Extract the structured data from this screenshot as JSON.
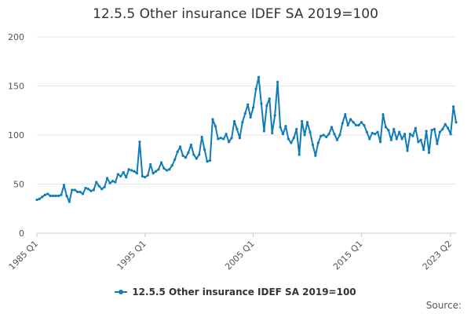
{
  "chart_data": {
    "type": "line",
    "title": "12.5.5 Other insurance IDEF SA 2019=100",
    "xlabel": "",
    "ylabel": "",
    "ylim": [
      0,
      200
    ],
    "yticks": [
      "0",
      "50",
      "100",
      "150",
      "200"
    ],
    "x_tick_labels": [
      "1985 Q1",
      "1995 Q1",
      "2005 Q1",
      "2015 Q1",
      "2023 Q2"
    ],
    "grid": true,
    "legend_position": "bottom",
    "series": [
      {
        "name": "12.5.5 Other insurance IDEF SA 2019=100",
        "color": "#0f7cb8",
        "start": "1985 Q1",
        "frequency": "quarterly",
        "values": [
          34,
          35,
          37,
          39,
          40,
          38,
          38,
          38,
          38,
          39,
          49,
          38,
          32,
          44,
          44,
          42,
          42,
          40,
          46,
          45,
          43,
          44,
          52,
          48,
          45,
          47,
          56,
          51,
          53,
          52,
          60,
          58,
          62,
          57,
          65,
          64,
          63,
          61,
          93,
          58,
          57,
          59,
          70,
          61,
          63,
          65,
          72,
          66,
          64,
          65,
          69,
          75,
          83,
          88,
          79,
          77,
          82,
          90,
          80,
          76,
          80,
          98,
          85,
          73,
          74,
          116,
          109,
          96,
          97,
          96,
          101,
          93,
          97,
          114,
          106,
          97,
          113,
          122,
          131,
          118,
          128,
          147,
          159,
          132,
          104,
          130,
          137,
          102,
          120,
          154,
          108,
          101,
          109,
          96,
          92,
          97,
          106,
          80,
          114,
          100,
          113,
          103,
          90,
          79,
          92,
          99,
          100,
          98,
          101,
          108,
          101,
          95,
          100,
          112,
          121,
          110,
          116,
          113,
          110,
          110,
          113,
          110,
          103,
          96,
          102,
          101,
          103,
          93,
          121,
          108,
          105,
          95,
          106,
          96,
          103,
          96,
          101,
          84,
          101,
          99,
          107,
          93,
          95,
          85,
          104,
          82,
          105,
          106,
          91,
          103,
          106,
          111,
          107,
          101,
          129,
          113
        ]
      }
    ]
  },
  "legend": {
    "label": "12.5.5 Other insurance IDEF SA 2019=100"
  },
  "source": {
    "label": "Source:"
  }
}
